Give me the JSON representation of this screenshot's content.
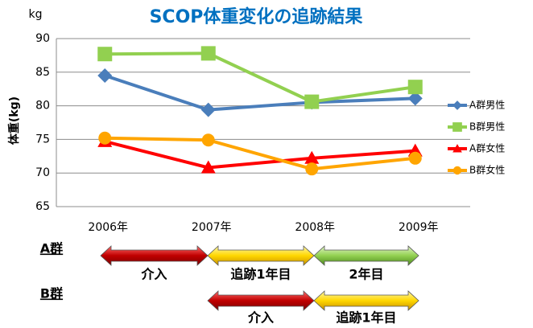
{
  "chart_data": {
    "type": "line",
    "title": "SCOP体重変化の追跡結果",
    "y_unit": "kg",
    "y_label": "体重(kg)",
    "categories": [
      "2006年",
      "2007年",
      "2008年",
      "2009年"
    ],
    "series": [
      {
        "name": "A群男性",
        "color": "#4a7ebb",
        "marker": "diamond",
        "values": [
          84.5,
          79.4,
          80.5,
          81.1
        ]
      },
      {
        "name": "B群男性",
        "color": "#92d050",
        "marker": "square",
        "values": [
          87.7,
          87.8,
          80.6,
          82.8
        ]
      },
      {
        "name": "A群女性",
        "color": "#ff0000",
        "marker": "triangle",
        "values": [
          74.7,
          70.8,
          72.2,
          73.3
        ]
      },
      {
        "name": "B群女性",
        "color": "#ffa500",
        "marker": "circle",
        "values": [
          75.2,
          74.9,
          70.6,
          72.2
        ]
      }
    ],
    "ylim": [
      65,
      90
    ],
    "yticks": [
      65,
      70,
      75,
      80,
      85,
      90
    ],
    "grid": true,
    "legend": "right"
  },
  "timeline": [
    {
      "name": "A群",
      "phases": [
        "介入",
        "追跡1年目",
        "2年目"
      ]
    },
    {
      "name": "B群",
      "phases": [
        "介入",
        "追跡1年目"
      ]
    }
  ]
}
